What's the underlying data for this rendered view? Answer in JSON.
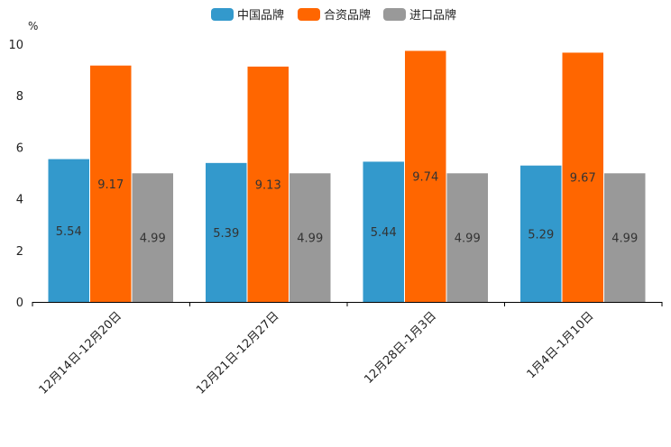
{
  "chart_data": {
    "type": "bar",
    "title": "",
    "xlabel": "",
    "ylabel": "%",
    "ylim": [
      0,
      10
    ],
    "yticks": [
      0,
      2,
      4,
      6,
      8,
      10
    ],
    "grid": false,
    "legend_position": "top-center",
    "categories": [
      "12月14日-12月20日",
      "12月21日-12月27日",
      "12月28日-1月3日",
      "1月4日-1月10日"
    ],
    "series": [
      {
        "name": "中国品牌",
        "color": "#3399CC",
        "values": [
          5.54,
          5.39,
          5.44,
          5.29
        ]
      },
      {
        "name": "合资品牌",
        "color": "#FF6600",
        "values": [
          9.17,
          9.13,
          9.74,
          9.67
        ]
      },
      {
        "name": "进口品牌",
        "color": "#999999",
        "values": [
          4.99,
          4.99,
          4.99,
          4.99
        ]
      }
    ]
  }
}
